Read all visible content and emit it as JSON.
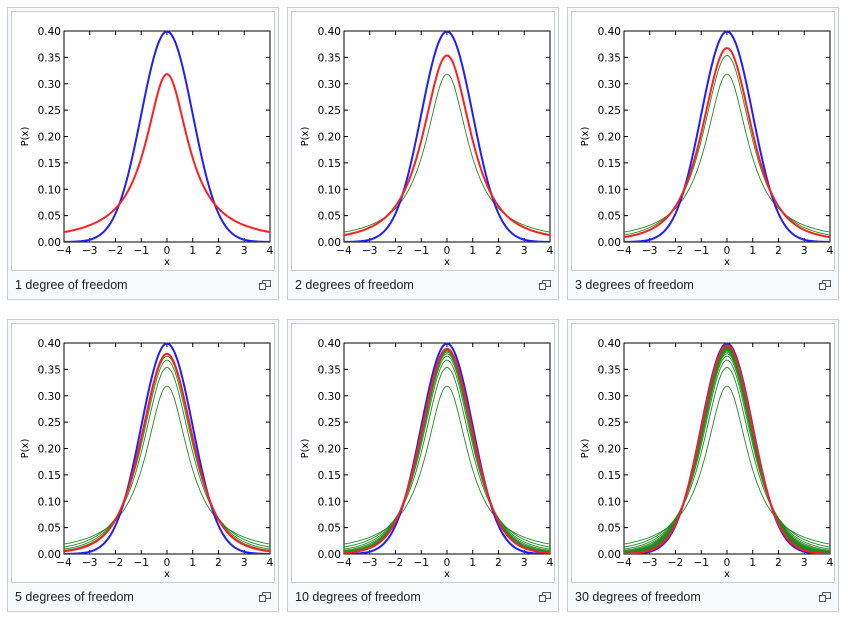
{
  "colors": {
    "normal": "#1f1fff",
    "highlight": "#ff1f1f",
    "previous": "#228b22"
  },
  "panels": [
    {
      "caption": "1 degree of freedom",
      "df": 1,
      "previous_df": []
    },
    {
      "caption": "2 degrees of freedom",
      "df": 2,
      "previous_df": [
        1
      ]
    },
    {
      "caption": "3 degrees of freedom",
      "df": 3,
      "previous_df": [
        1,
        2
      ]
    },
    {
      "caption": "5 degrees of freedom",
      "df": 5,
      "previous_df": [
        1,
        2,
        3,
        4
      ]
    },
    {
      "caption": "10 degrees of freedom",
      "df": 10,
      "previous_df": [
        1,
        2,
        3,
        4,
        5,
        6,
        7,
        8,
        9
      ]
    },
    {
      "caption": "30 degrees of freedom",
      "df": 30,
      "previous_df": [
        1,
        2,
        3,
        4,
        5,
        6,
        7,
        8,
        9,
        10,
        11,
        12,
        13,
        14,
        15,
        16,
        17,
        18,
        19,
        20,
        21,
        22,
        23,
        24,
        25,
        26,
        27,
        28,
        29
      ]
    }
  ],
  "chart_data": {
    "type": "line",
    "xlabel": "x",
    "ylabel": "P(x)",
    "xlim": [
      -4,
      4
    ],
    "ylim": [
      0,
      0.4
    ],
    "x_ticks": [
      -4,
      -3,
      -2,
      -1,
      0,
      1,
      2,
      3,
      4
    ],
    "x_tick_labels": [
      "−4",
      "−3",
      "−2",
      "−1",
      "0",
      "1",
      "2",
      "3",
      "4"
    ],
    "y_ticks": [
      0,
      0.05,
      0.1,
      0.15,
      0.2,
      0.25,
      0.3,
      0.35,
      0.4
    ],
    "y_tick_labels": [
      "0.00",
      "0.05",
      "0.10",
      "0.15",
      "0.20",
      "0.25",
      "0.30",
      "0.35",
      "0.40"
    ],
    "x": [
      -4,
      -3,
      -2,
      -1,
      0,
      1,
      2,
      3,
      4
    ],
    "curves": {
      "normal": [
        0.0001,
        0.0044,
        0.054,
        0.242,
        0.399,
        0.242,
        0.054,
        0.0044,
        0.0001
      ],
      "df1": [
        0.019,
        0.032,
        0.064,
        0.159,
        0.318,
        0.159,
        0.064,
        0.032,
        0.019
      ],
      "df2": [
        0.013,
        0.027,
        0.068,
        0.192,
        0.354,
        0.192,
        0.068,
        0.027,
        0.013
      ],
      "df3": [
        0.009,
        0.023,
        0.068,
        0.207,
        0.368,
        0.207,
        0.068,
        0.023,
        0.009
      ],
      "df5": [
        0.005,
        0.017,
        0.065,
        0.22,
        0.38,
        0.22,
        0.065,
        0.017,
        0.005
      ],
      "df10": [
        0.002,
        0.011,
        0.061,
        0.23,
        0.389,
        0.23,
        0.061,
        0.011,
        0.002
      ],
      "df30": [
        0.0006,
        0.0067,
        0.057,
        0.238,
        0.396,
        0.238,
        0.057,
        0.0067,
        0.0006
      ]
    }
  }
}
